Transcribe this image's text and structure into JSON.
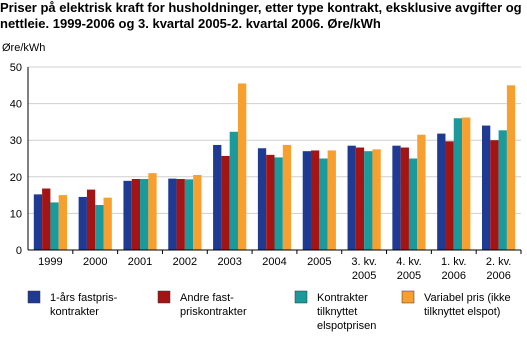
{
  "chart_data": {
    "type": "bar",
    "title": "Priser på elektrisk kraft for husholdninger, etter type kontrakt, eksklusive avgifter og nettleie. 1999-2006 og 3. kvartal 2005-2. kvartal 2006. Øre/kWh",
    "y_label": "Øre/kWh",
    "categories": [
      "1999",
      "2000",
      "2001",
      "2002",
      "2003",
      "2004",
      "2005",
      "3. kv.\n2005",
      "4. kv.\n2005",
      "1. kv.\n2006",
      "2. kv.\n2006"
    ],
    "series": [
      {
        "name": "1-års fastpris-\nkontrakter",
        "color": "#1f3a93",
        "values": [
          15.2,
          14.5,
          18.9,
          19.5,
          28.7,
          27.8,
          27.0,
          28.5,
          28.5,
          31.8,
          34.0
        ]
      },
      {
        "name": "Andre fast-\npriskontrakter",
        "color": "#a31515",
        "values": [
          16.8,
          16.5,
          19.4,
          19.4,
          25.7,
          26.0,
          27.2,
          28.0,
          28.0,
          29.7,
          30.0
        ]
      },
      {
        "name": "Kontrakter\ntilknyttet\nelspotprisen",
        "color": "#1a9a9a",
        "values": [
          13.0,
          12.3,
          19.4,
          19.3,
          32.3,
          25.3,
          25.0,
          27.0,
          25.0,
          36.0,
          32.7
        ]
      },
      {
        "name": "Variabel pris (ikke\ntilknyttet elspot)",
        "color": "#f7a030",
        "values": [
          15.0,
          14.3,
          21.0,
          20.5,
          45.5,
          28.7,
          27.2,
          27.5,
          31.5,
          36.2,
          45.0
        ]
      }
    ],
    "ylim": [
      0,
      50
    ],
    "yticks": [
      0,
      10,
      20,
      30,
      40,
      50
    ],
    "grid": true
  }
}
